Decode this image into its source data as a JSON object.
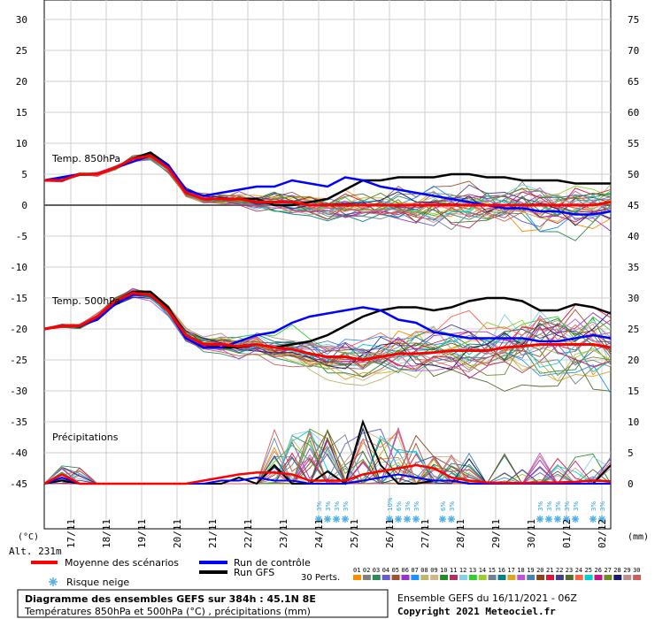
{
  "chart_data": {
    "type": "line",
    "title": "Diagramme des ensembles GEFS sur 384h : 45.1N 8E",
    "subtitle": "Températures 850hPa et 500hPa (°C) , précipitations (mm)",
    "left_axis_unit": "(°C)",
    "right_axis_unit": "(mm)",
    "altitude_label": "Alt. 231m",
    "left_ticks": [
      30,
      25,
      20,
      15,
      10,
      5,
      0,
      -5,
      -10,
      -15,
      -20,
      -25,
      -30,
      -35,
      -40,
      -45
    ],
    "right_ticks": [
      75,
      70,
      65,
      60,
      55,
      50,
      45,
      40,
      35,
      30,
      25,
      20,
      15,
      10,
      5,
      0
    ],
    "ylim": [
      -45,
      30
    ],
    "precip_ylim": [
      0,
      75
    ],
    "date_labels": [
      "17/11",
      "18/11",
      "19/11",
      "20/11",
      "21/11",
      "22/11",
      "23/11",
      "24/11",
      "25/11",
      "26/11",
      "27/11",
      "28/11",
      "29/11",
      "30/11",
      "01/12",
      "02/12"
    ],
    "panel_labels": {
      "t850": "Temp. 850hPa",
      "t500": "Temp. 500hPa",
      "precip": "Précipitations"
    },
    "x_hours": [
      0,
      12,
      24,
      36,
      48,
      60,
      72,
      84,
      96,
      108,
      120,
      132,
      144,
      156,
      168,
      180,
      192,
      204,
      216,
      228,
      240,
      252,
      264,
      276,
      288,
      300,
      312,
      324,
      336,
      348,
      360,
      372,
      384
    ],
    "series": [
      {
        "name": "Moyenne des scénarios",
        "color": "#ff0000",
        "t850": [
          4,
          4,
          5,
          5,
          6,
          7.5,
          8,
          6,
          2,
          1,
          1,
          1,
          0.5,
          0.5,
          0.5,
          0,
          0,
          0,
          0,
          0,
          0,
          0,
          0,
          0,
          0,
          0,
          0,
          0,
          0,
          0,
          0,
          0,
          0.5
        ],
        "t500": [
          -20,
          -19.5,
          -19.5,
          -18,
          -15.5,
          -14.2,
          -14.5,
          -17,
          -21,
          -22.5,
          -22.5,
          -22.8,
          -22.5,
          -23,
          -23.3,
          -24,
          -24.5,
          -24.5,
          -25,
          -24.5,
          -24,
          -24,
          -23.8,
          -23.5,
          -23.5,
          -23.5,
          -23,
          -22.8,
          -22.5,
          -22.5,
          -22.5,
          -22.5,
          -23
        ],
        "precip": [
          0,
          1.5,
          0,
          0,
          0,
          0,
          0,
          0,
          0,
          0.5,
          1,
          1.5,
          1.8,
          1.8,
          1.5,
          0.5,
          0.5,
          0.5,
          1.5,
          2,
          2.5,
          3,
          2.5,
          1,
          0.5,
          0.2,
          0.1,
          0.1,
          0.2,
          0.2,
          0.3,
          0.5,
          0.4
        ]
      },
      {
        "name": "Run de contrôle",
        "color": "#0000ff",
        "t850": [
          4,
          4.5,
          5,
          5,
          6,
          7,
          8,
          6.5,
          2.5,
          1.5,
          2,
          2.5,
          3,
          3,
          4,
          3.5,
          3,
          4.5,
          4,
          3,
          2.5,
          2,
          1.5,
          1,
          0.5,
          0,
          -0.5,
          -0.5,
          -1,
          -1,
          -1.5,
          -1.5,
          -1
        ],
        "t500": [
          -20,
          -19.5,
          -19.5,
          -18.5,
          -16,
          -14.5,
          -14.5,
          -17,
          -21.5,
          -23,
          -23,
          -22,
          -21,
          -20.5,
          -19,
          -18,
          -17.5,
          -17,
          -16.5,
          -17,
          -18.5,
          -19,
          -20.5,
          -21,
          -21.5,
          -21.5,
          -21.5,
          -21.5,
          -22,
          -22,
          -21.5,
          -21,
          -21.5
        ],
        "precip": [
          0,
          1,
          0,
          0,
          0,
          0,
          0,
          0,
          0,
          0,
          0.5,
          0.5,
          1,
          0.5,
          0.5,
          0,
          0,
          0,
          0.5,
          1,
          1.5,
          1,
          0.5,
          0.5,
          0,
          0,
          0,
          0,
          0,
          0,
          0,
          0,
          0
        ]
      },
      {
        "name": "Run GFS",
        "color": "#000000",
        "t850": [
          4,
          4.5,
          5,
          5,
          6,
          7.5,
          8.5,
          6.5,
          2,
          1,
          1,
          1,
          1,
          0,
          0,
          0.5,
          1,
          2.5,
          4,
          4,
          4.5,
          4.5,
          4.5,
          5,
          5,
          4.5,
          4.5,
          4,
          4,
          4,
          3.5,
          3.5,
          3.5
        ],
        "t500": [
          -20,
          -19.5,
          -19.5,
          -18,
          -15.5,
          -14,
          -14,
          -16.5,
          -21,
          -22.5,
          -23,
          -23,
          -22.5,
          -23,
          -22.5,
          -22,
          -21,
          -19.5,
          -18,
          -17,
          -16.5,
          -16.5,
          -17,
          -16.5,
          -15.5,
          -15,
          -15,
          -15.5,
          -17,
          -17,
          -16,
          -16.5,
          -17.5
        ],
        "precip": [
          0,
          0.5,
          0,
          0,
          0,
          0,
          0,
          0,
          0,
          0,
          0,
          1,
          0,
          3,
          0,
          0,
          2,
          0,
          10,
          3,
          0,
          0,
          0.5,
          0.5,
          0,
          0,
          0,
          0,
          0,
          0,
          0,
          0,
          3
        ]
      }
    ],
    "perturbations": {
      "label": "30 Perts.",
      "members": [
        "01",
        "02",
        "03",
        "04",
        "05",
        "06",
        "07",
        "08",
        "09",
        "10",
        "11",
        "12",
        "13",
        "14",
        "15",
        "16",
        "17",
        "18",
        "19",
        "20",
        "21",
        "22",
        "23",
        "24",
        "25",
        "26",
        "27",
        "28",
        "29",
        "30"
      ],
      "colors": [
        "#ff8c00",
        "#808080",
        "#2e8b57",
        "#6a5acd",
        "#a0522d",
        "#9932cc",
        "#1e90ff",
        "#bdb76b",
        "#d2b48c",
        "#228b22",
        "#b03060",
        "#87ceeb",
        "#32cd32",
        "#9acd32",
        "#708090",
        "#008080",
        "#daa520",
        "#ba55d3",
        "#4682b4",
        "#8b4513",
        "#dc143c",
        "#483d8b",
        "#556b2f",
        "#ff6347",
        "#00ced1",
        "#c71585",
        "#6b8e23",
        "#191970",
        "#bc8f8f",
        "#cd5c5c"
      ]
    },
    "snow_risk_label": "Risque neige",
    "snow_markers": [
      {
        "hour": 186,
        "pct": "3%"
      },
      {
        "hour": 192,
        "pct": "3%"
      },
      {
        "hour": 198,
        "pct": "3%"
      },
      {
        "hour": 204,
        "pct": "3%"
      },
      {
        "hour": 234,
        "pct": "10%"
      },
      {
        "hour": 240,
        "pct": "6%"
      },
      {
        "hour": 246,
        "pct": "3%"
      },
      {
        "hour": 252,
        "pct": "3%"
      },
      {
        "hour": 270,
        "pct": "6%"
      },
      {
        "hour": 276,
        "pct": "3%"
      },
      {
        "hour": 336,
        "pct": "3%"
      },
      {
        "hour": 342,
        "pct": "3%"
      },
      {
        "hour": 348,
        "pct": "3%"
      },
      {
        "hour": 354,
        "pct": "3%"
      },
      {
        "hour": 360,
        "pct": "3%"
      },
      {
        "hour": 372,
        "pct": "3%"
      },
      {
        "hour": 378,
        "pct": "3%"
      }
    ],
    "legend": {
      "mean": "Moyenne des scénarios",
      "control": "Run de contrôle",
      "gfs": "Run GFS"
    },
    "ensemble_info": "Ensemble GEFS du 16/11/2021 - 06Z",
    "copyright": "Copyright 2021 Meteociel.fr"
  }
}
